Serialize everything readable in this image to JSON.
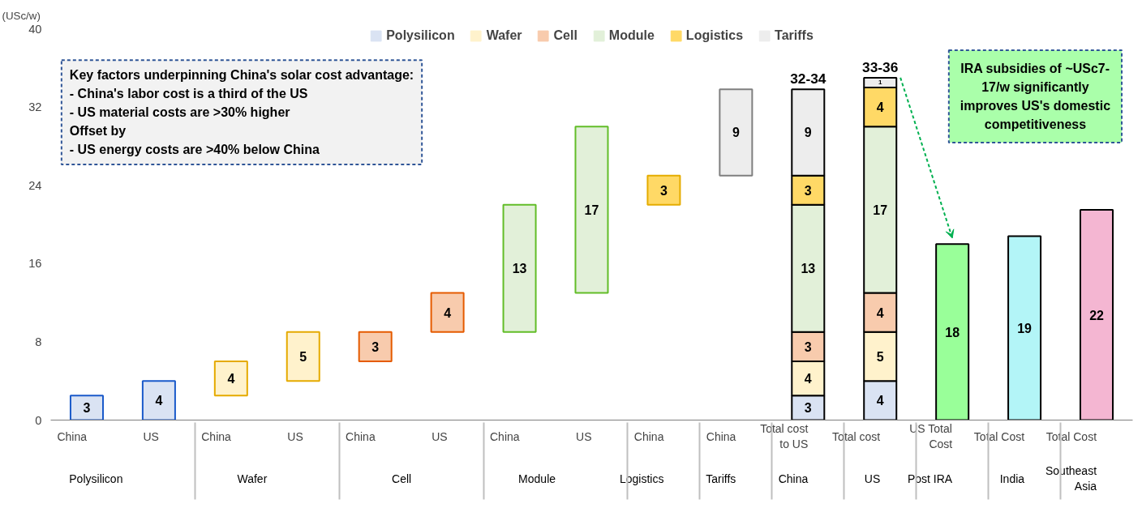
{
  "chart_data": {
    "type": "bar",
    "stacked": true,
    "ylabel": "(USc/w)",
    "categories": [
      [
        "Polysilicon",
        "China"
      ],
      [
        null,
        "US"
      ],
      [
        "Wafer",
        "China"
      ],
      [
        null,
        "US"
      ],
      [
        "Cell",
        "China"
      ],
      [
        null,
        "US"
      ],
      [
        "Module",
        "China"
      ],
      [
        null,
        "US"
      ],
      [
        "Logistics",
        "China"
      ],
      [
        "Tariffs",
        "China"
      ],
      [
        "China",
        "Total cost to US"
      ],
      [
        "US",
        "Total cost"
      ],
      [
        "Post IRA",
        "US Total Cost"
      ],
      [
        "India",
        "Total Cost"
      ],
      [
        "Southeast Asia",
        "Total Cost"
      ]
    ],
    "ylim": [
      0,
      40
    ],
    "yticks": [
      0,
      8,
      16,
      24,
      32,
      40
    ],
    "grid": false,
    "legend": "top",
    "series": [
      {
        "name": "Polysilicon",
        "color": "#dae3f3",
        "values": [
          2.5,
          4,
          null,
          null,
          null,
          null,
          null,
          null,
          null,
          null,
          2.5,
          4,
          null,
          null,
          null
        ],
        "base": [
          0,
          0,
          null,
          null,
          null,
          null,
          null,
          null,
          null,
          null,
          null,
          null,
          null,
          null,
          null
        ],
        "value_labels": [
          "3",
          "4",
          null,
          null,
          null,
          null,
          null,
          null,
          null,
          null,
          "3",
          "4",
          null,
          null,
          null
        ]
      },
      {
        "name": "Wafer",
        "color": "#fff2cc",
        "values": [
          null,
          null,
          3.5,
          5,
          null,
          null,
          null,
          null,
          null,
          null,
          3.5,
          5,
          null,
          null,
          null
        ],
        "base": [
          null,
          null,
          2.5,
          4,
          null,
          null,
          null,
          null,
          null,
          null,
          null,
          null,
          null,
          null,
          null
        ],
        "value_labels": [
          null,
          null,
          "4",
          "5",
          null,
          null,
          null,
          null,
          null,
          null,
          "4",
          "5",
          null,
          null,
          null
        ]
      },
      {
        "name": "Cell",
        "color": "#f8cbad",
        "values": [
          null,
          null,
          null,
          null,
          3,
          4,
          null,
          null,
          null,
          null,
          3,
          4,
          null,
          null,
          null
        ],
        "base": [
          null,
          null,
          null,
          null,
          6,
          9,
          null,
          null,
          null,
          null,
          null,
          null,
          null,
          null,
          null
        ],
        "value_labels": [
          null,
          null,
          null,
          null,
          "3",
          "4",
          null,
          null,
          null,
          null,
          "3",
          "4",
          null,
          null,
          null
        ]
      },
      {
        "name": "Module",
        "color": "#e2f0d9",
        "values": [
          null,
          null,
          null,
          null,
          null,
          null,
          13,
          17,
          null,
          null,
          13,
          17,
          null,
          null,
          null
        ],
        "base": [
          null,
          null,
          null,
          null,
          null,
          null,
          9,
          13,
          null,
          null,
          null,
          null,
          null,
          null,
          null
        ],
        "value_labels": [
          null,
          null,
          null,
          null,
          null,
          null,
          "13",
          "17",
          null,
          null,
          "13",
          "17",
          null,
          null,
          null
        ]
      },
      {
        "name": "Logistics",
        "color": "#ffd966",
        "values": [
          null,
          null,
          null,
          null,
          null,
          null,
          null,
          null,
          3,
          null,
          3,
          4,
          null,
          null,
          null
        ],
        "base": [
          null,
          null,
          null,
          null,
          null,
          null,
          null,
          null,
          22,
          null,
          null,
          null,
          null,
          null,
          null
        ],
        "value_labels": [
          null,
          null,
          null,
          null,
          null,
          null,
          null,
          null,
          "3",
          null,
          "3",
          "4",
          null,
          null,
          null
        ]
      },
      {
        "name": "Tariffs",
        "color": "#ededed",
        "values": [
          null,
          null,
          null,
          null,
          null,
          null,
          null,
          null,
          null,
          8.8,
          8.8,
          1,
          null,
          null,
          null
        ],
        "base": [
          null,
          null,
          null,
          null,
          null,
          null,
          null,
          null,
          null,
          25,
          null,
          null,
          null,
          null,
          null
        ],
        "value_labels": [
          null,
          null,
          null,
          null,
          null,
          null,
          null,
          null,
          null,
          "9",
          "9",
          "1",
          null,
          null,
          null
        ]
      },
      {
        "color": "#99ff99",
        "values": [
          null,
          null,
          null,
          null,
          null,
          null,
          null,
          null,
          null,
          null,
          null,
          null,
          18,
          null,
          null
        ],
        "value_labels": [
          null,
          null,
          null,
          null,
          null,
          null,
          null,
          null,
          null,
          null,
          null,
          null,
          "18",
          null,
          null
        ]
      },
      {
        "color": "#b3f5f7",
        "values": [
          null,
          null,
          null,
          null,
          null,
          null,
          null,
          null,
          null,
          null,
          null,
          null,
          null,
          18.8,
          null
        ],
        "value_labels": [
          null,
          null,
          null,
          null,
          null,
          null,
          null,
          null,
          null,
          null,
          null,
          null,
          null,
          "19",
          null
        ]
      },
      {
        "color": "#f4b6d2",
        "values": [
          null,
          null,
          null,
          null,
          null,
          null,
          null,
          null,
          null,
          null,
          null,
          null,
          null,
          null,
          21.5
        ],
        "value_labels": [
          null,
          null,
          null,
          null,
          null,
          null,
          null,
          null,
          null,
          null,
          null,
          null,
          null,
          null,
          "22"
        ]
      }
    ],
    "totals": [
      null,
      null,
      null,
      null,
      null,
      null,
      null,
      null,
      null,
      null,
      "32-34",
      "33-36",
      null,
      null,
      null
    ],
    "annotations": [
      "Key factors underpinning China's solar cost advantage:\n- China's labor cost is a third of the US\n- US material costs are >30% higher\nOffset by\n- US energy costs are >40% below China",
      "IRA subsidies of ~USc7-\n17/w significantly\nimproves US's domestic\ncompetitiveness"
    ]
  }
}
